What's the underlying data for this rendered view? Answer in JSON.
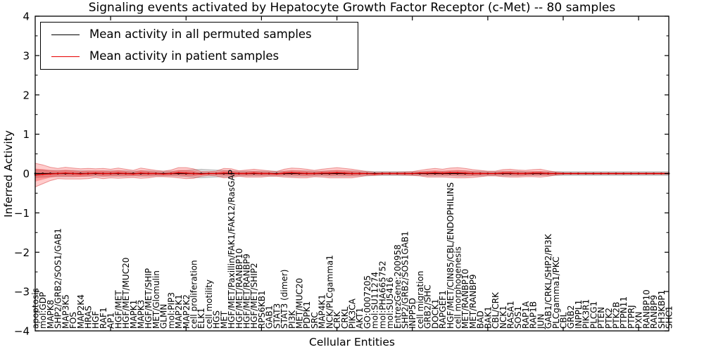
{
  "title": "Signaling events activated by Hepatocyte Growth Factor Receptor (c-Met) -- 80 samples",
  "axes": {
    "ylabel": "Inferred Activity",
    "xlabel": "Cellular Entities",
    "yticks": [
      4,
      3,
      2,
      1,
      0,
      -1,
      -2,
      -3,
      -4
    ]
  },
  "legend": {
    "entries": [
      {
        "label": "Mean activity in all permuted samples",
        "color": "#000000"
      },
      {
        "label": "Mean activity in patient samples",
        "color": "#e60000"
      }
    ]
  },
  "chart_data": {
    "type": "line",
    "title": "Signaling events activated by Hepatocyte Growth Factor Receptor (c-Met) -- 80 samples",
    "xlabel": "Cellular Entities",
    "ylabel": "Inferred Activity",
    "ylim": [
      -4,
      4
    ],
    "grid": false,
    "legend_position": "upper left",
    "categories": [
      "apoptosis",
      "mol:GDP",
      "MAPK8",
      "SHP2/GRB2/SOS1/GAB1",
      "MAP3K5",
      "FOS",
      "MAP2K4",
      "HRAS",
      "HGF",
      "RAF1",
      "AP1",
      "HGF/MET",
      "HGF/MET/MUC20",
      "MAPK1",
      "MAPK3",
      "HGF/MET/SHIP",
      "MET/Glomulin",
      "GLMN",
      "mol:PIP3",
      "MAP2K1",
      "MAP2K2",
      "cell proliferation",
      "ELK1",
      "cell motility",
      "HGS",
      "MET",
      "HGF/MET/Paxillin/FAK1/FAK12/RasGAP",
      "HGF/MET/RANBP10",
      "HGF/MET/RANBP9",
      "HGF/MET/SHIP2",
      "RPS6KB1",
      "GAB1",
      "STAT3",
      "STAT3 (dimer)",
      "PI3K",
      "MET/MUC20",
      "PDPK1",
      "SRC",
      "MAP4K1",
      "NCK/PLCgamma1",
      "CRK",
      "CRKL",
      "PIK3CA",
      "AKT1",
      "GO:0007205",
      "mol:SU11274",
      "mol:PHA665752",
      "mol:SU5416",
      "EntrezGene:200958",
      "SHP2/GRB2/SOS1GAB1",
      "INPP5D",
      "cell migration",
      "GRB2/SHC",
      "DOCK1",
      "RAPGEF1",
      "HGF/MET/CIN85/CBL/ENDOPHILINS",
      "cell morphogenesis",
      "MET/RANBP10",
      "MET/RANBP9",
      "BAD",
      "BAK1",
      "CBL/CRK",
      "NCK1",
      "RASA1",
      "SOS1",
      "RAP1A",
      "RAP1B",
      "JUN",
      "GAB1/CRKL/SHP2/PI3K",
      "PLCgamma1/PKC",
      "CBL",
      "GRB2",
      "INPPL1",
      "PIK3R1",
      "PLCG1",
      "PTEN",
      "PTK2",
      "PTK2B",
      "PTPN11",
      "PTPRJ",
      "PXN",
      "RANBP10",
      "RANBP9",
      "SH3KBP1",
      "SHC1"
    ],
    "series": [
      {
        "name": "Mean activity in all permuted samples",
        "color": "#000000",
        "band_color": "rgba(128,128,128,0.30)",
        "values": [
          0,
          0,
          0,
          0,
          0,
          0,
          0,
          0,
          0,
          0,
          0,
          0,
          0,
          0,
          0,
          0,
          0,
          0,
          0,
          0,
          0,
          0,
          0,
          0,
          0,
          0,
          0,
          0,
          0,
          0,
          0,
          0,
          0,
          0,
          0,
          0,
          0,
          0,
          0,
          0,
          0,
          0,
          0,
          0,
          0,
          0,
          0,
          0,
          0,
          0,
          0,
          0,
          0,
          0,
          0,
          0,
          0,
          0,
          0,
          0,
          0,
          0,
          0,
          0,
          0,
          0,
          0,
          0,
          0,
          0,
          0,
          0,
          0,
          0,
          0,
          0,
          0,
          0,
          0,
          0,
          0,
          0,
          0,
          0,
          0
        ],
        "band_halfwidth": [
          0.1,
          0.09,
          0.08,
          0.08,
          0.08,
          0.08,
          0.07,
          0.07,
          0.07,
          0.07,
          0.07,
          0.07,
          0.07,
          0.06,
          0.07,
          0.07,
          0.06,
          0.06,
          0.06,
          0.07,
          0.08,
          0.1,
          0.11,
          0.1,
          0.09,
          0.08,
          0.07,
          0.06,
          0.06,
          0.06,
          0.06,
          0.06,
          0.06,
          0.06,
          0.07,
          0.07,
          0.07,
          0.06,
          0.06,
          0.07,
          0.07,
          0.07,
          0.07,
          0.06,
          0.06,
          0.05,
          0.05,
          0.05,
          0.05,
          0.05,
          0.05,
          0.05,
          0.06,
          0.06,
          0.06,
          0.06,
          0.07,
          0.07,
          0.06,
          0.06,
          0.05,
          0.05,
          0.06,
          0.06,
          0.06,
          0.05,
          0.05,
          0.05,
          0.05,
          0.05,
          0.05,
          0.05,
          0.05,
          0.05,
          0.05,
          0.05,
          0.05,
          0.05,
          0.05,
          0.05,
          0.05,
          0.05,
          0.05,
          0.05,
          0.05
        ]
      },
      {
        "name": "Mean activity in patient samples",
        "color": "#e60000",
        "band_color": "rgba(255,0,0,0.24)",
        "values": [
          -0.04,
          -0.02,
          -0.01,
          0,
          0.01,
          0,
          -0.01,
          0,
          0.01,
          0,
          0,
          0.01,
          0,
          -0.01,
          0.01,
          0,
          0,
          -0.01,
          0,
          0.02,
          0.01,
          0,
          -0.01,
          0,
          0,
          0.01,
          0.01,
          0,
          0,
          0.01,
          0,
          0,
          -0.01,
          0.01,
          0.02,
          0.01,
          0,
          0,
          0.01,
          0.01,
          0.02,
          0.01,
          0,
          0,
          0,
          -0.01,
          0,
          0,
          0,
          0,
          0,
          0.01,
          0.01,
          0.02,
          0.01,
          0.02,
          0.02,
          0.01,
          0,
          0,
          0,
          0,
          0.01,
          0.01,
          0,
          0,
          0.01,
          0.01,
          0,
          0,
          0,
          0,
          0,
          0,
          0,
          0,
          0,
          0,
          0,
          0,
          0,
          0,
          0,
          0,
          0
        ],
        "band_halfwidth": [
          0.3,
          0.24,
          0.17,
          0.13,
          0.15,
          0.14,
          0.13,
          0.13,
          0.11,
          0.13,
          0.11,
          0.13,
          0.11,
          0.09,
          0.13,
          0.11,
          0.08,
          0.07,
          0.09,
          0.13,
          0.14,
          0.12,
          0.06,
          0.05,
          0.06,
          0.12,
          0.11,
          0.07,
          0.09,
          0.1,
          0.09,
          0.07,
          0.06,
          0.1,
          0.12,
          0.12,
          0.11,
          0.08,
          0.1,
          0.12,
          0.13,
          0.12,
          0.11,
          0.08,
          0.05,
          0.04,
          0.03,
          0.03,
          0.03,
          0.04,
          0.05,
          0.07,
          0.1,
          0.11,
          0.1,
          0.12,
          0.13,
          0.12,
          0.1,
          0.08,
          0.06,
          0.06,
          0.09,
          0.1,
          0.09,
          0.08,
          0.09,
          0.1,
          0.07,
          0.04,
          0.02,
          0.02,
          0.02,
          0.02,
          0.02,
          0.02,
          0.02,
          0.02,
          0.02,
          0.02,
          0.02,
          0.02,
          0.02,
          0.02,
          0.02
        ]
      }
    ]
  }
}
